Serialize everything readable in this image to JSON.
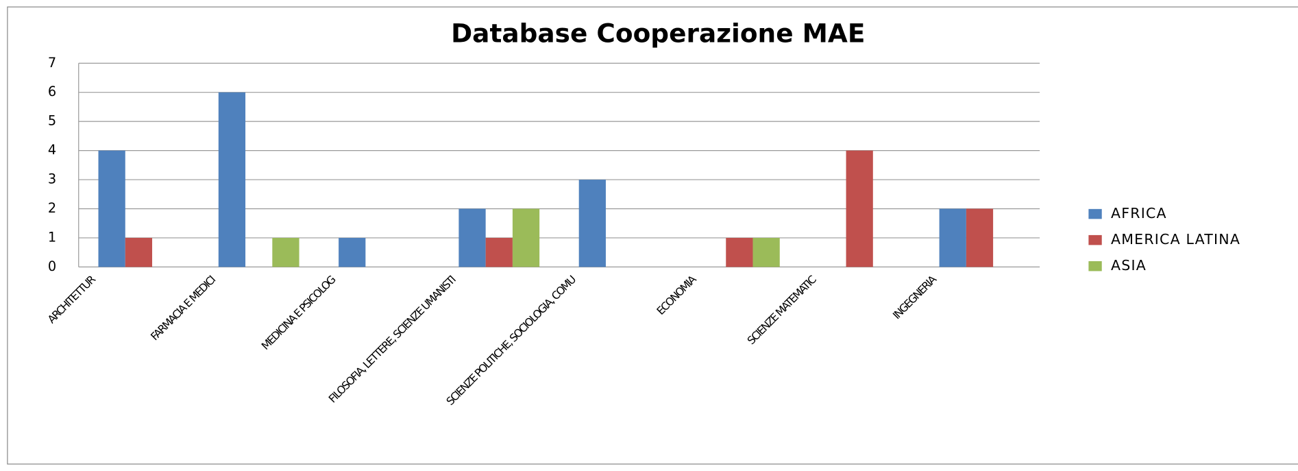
{
  "chart_data": {
    "type": "bar",
    "title": "Database Cooperazione MAE",
    "categories": [
      "ARCHITETTUR",
      "FARMACIA E MEDICI",
      "MEDICINA E PSICOLOG",
      "FILOSOFIA, LETTERE, SCIENZE UMANISTI",
      "SCIENZE POLITICHE, SOCIOLOGIA, COMU",
      "ECONOMIA",
      "SCIENZE MATEMATIC",
      "INGEGNERIA"
    ],
    "series": [
      {
        "name": "AFRICA",
        "color": "#4f81bd",
        "values": [
          4,
          6,
          1,
          2,
          3,
          0,
          0,
          2
        ]
      },
      {
        "name": "AMERICA LATINA",
        "color": "#c0504d",
        "values": [
          1,
          0,
          0,
          1,
          0,
          1,
          4,
          2
        ]
      },
      {
        "name": "ASIA",
        "color": "#9bbb59",
        "values": [
          0,
          1,
          0,
          2,
          0,
          1,
          0,
          0
        ]
      }
    ],
    "ylim": [
      0,
      7
    ],
    "yticks": [
      0,
      1,
      2,
      3,
      4,
      5,
      6,
      7
    ],
    "grid": true,
    "legend": "right"
  }
}
